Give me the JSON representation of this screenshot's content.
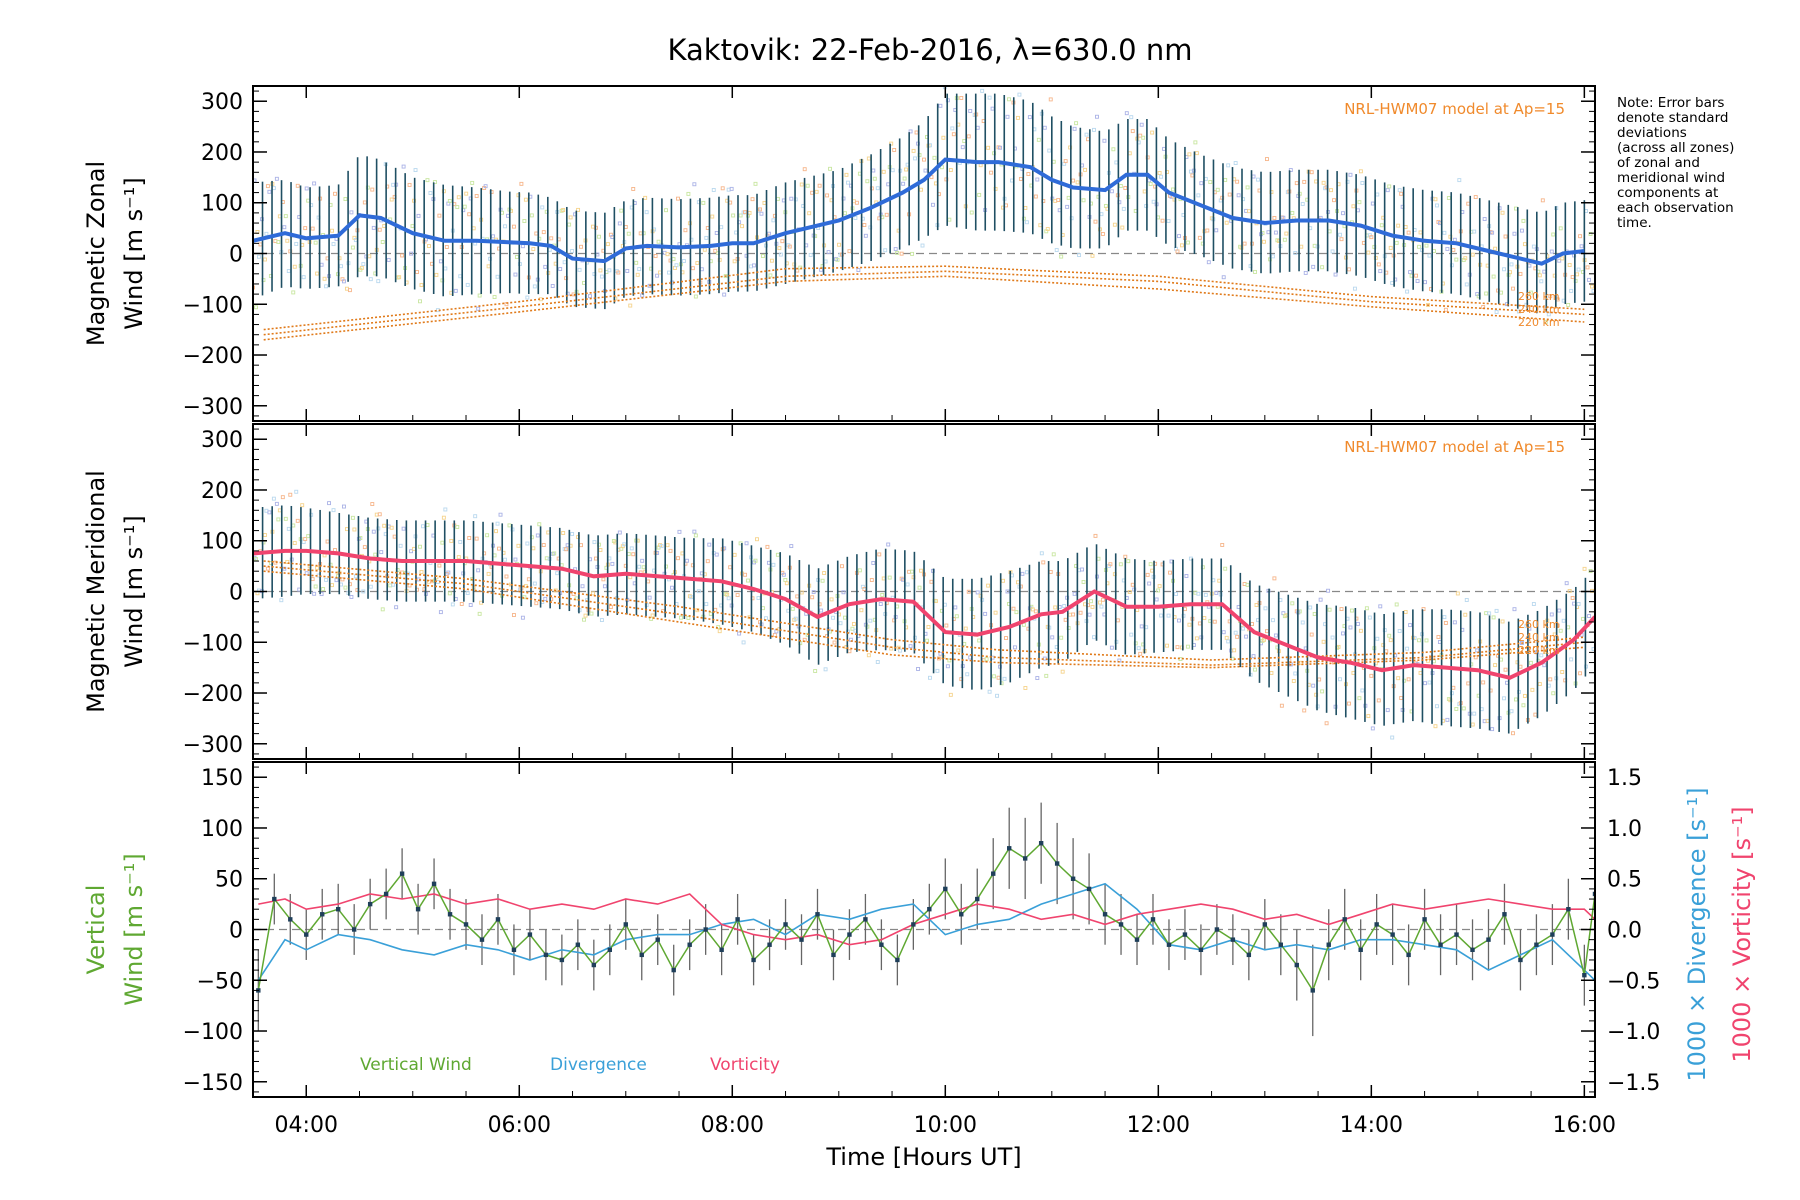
{
  "chart_data": [
    {
      "type": "line",
      "panel": "zonal",
      "title": "Kaktovik: 22-Feb-2016, λ=630.0 nm",
      "ylabel": [
        "Magnetic Zonal",
        "Wind [m s⁻¹]"
      ],
      "ylim": [
        -330,
        330
      ],
      "yticks": [
        -300,
        -200,
        -100,
        0,
        100,
        200,
        300
      ],
      "xlim_hours": [
        3.5,
        16.1
      ],
      "model_label": "NRL-HWM07 model at Ap=15",
      "model_altitudes": [
        "260 km",
        "240 km",
        "220 km"
      ],
      "note": [
        "Note: Error bars",
        "denote standard",
        "deviations",
        "(across all zones)",
        "of zonal and",
        "meridional wind",
        "components at",
        "each observation",
        "time."
      ],
      "series": [
        {
          "role": "mean",
          "color": "#2f6bd8",
          "x": [
            3.5,
            3.8,
            4.0,
            4.3,
            4.5,
            4.7,
            5.0,
            5.3,
            5.6,
            5.9,
            6.1,
            6.3,
            6.5,
            6.8,
            7.0,
            7.2,
            7.5,
            7.8,
            8.0,
            8.2,
            8.5,
            8.8,
            9.0,
            9.3,
            9.6,
            9.8,
            10.0,
            10.3,
            10.5,
            10.8,
            11.0,
            11.2,
            11.5,
            11.7,
            11.9,
            12.1,
            12.4,
            12.7,
            13.0,
            13.3,
            13.6,
            13.9,
            14.2,
            14.5,
            14.8,
            15.1,
            15.4,
            15.6,
            15.8,
            16.0
          ],
          "y": [
            25,
            40,
            30,
            35,
            75,
            70,
            40,
            25,
            25,
            22,
            20,
            15,
            -10,
            -15,
            10,
            15,
            12,
            15,
            20,
            20,
            40,
            55,
            65,
            90,
            120,
            145,
            185,
            180,
            180,
            170,
            145,
            130,
            125,
            155,
            155,
            120,
            95,
            70,
            60,
            65,
            65,
            55,
            35,
            25,
            20,
            5,
            -10,
            -20,
            0,
            5
          ],
          "error": [
            115,
            105,
            100,
            100,
            120,
            115,
            110,
            110,
            105,
            100,
            100,
            95,
            95,
            95,
            95,
            95,
            95,
            95,
            95,
            95,
            100,
            100,
            100,
            105,
            110,
            115,
            130,
            135,
            135,
            130,
            125,
            120,
            115,
            110,
            110,
            105,
            100,
            100,
            100,
            100,
            100,
            100,
            100,
            100,
            100,
            100,
            100,
            100,
            100,
            100
          ]
        },
        {
          "role": "model",
          "name": "260 km",
          "color": "#e07a1a",
          "x": [
            3.6,
            6.0,
            8.5,
            10.0,
            12.0,
            14.0,
            16.0
          ],
          "y": [
            -150,
            -95,
            -30,
            -25,
            -45,
            -85,
            -110
          ]
        },
        {
          "role": "model",
          "name": "240 km",
          "color": "#e07a1a",
          "x": [
            3.6,
            6.0,
            8.5,
            10.0,
            12.0,
            14.0,
            16.0
          ],
          "y": [
            -160,
            -105,
            -45,
            -35,
            -55,
            -95,
            -120
          ]
        },
        {
          "role": "model",
          "name": "220 km",
          "color": "#e07a1a",
          "x": [
            3.6,
            6.0,
            8.5,
            10.0,
            12.0,
            14.0,
            16.0
          ],
          "y": [
            -170,
            -115,
            -55,
            -45,
            -70,
            -105,
            -135
          ]
        }
      ]
    },
    {
      "type": "line",
      "panel": "meridional",
      "ylabel": [
        "Magnetic Meridional",
        "Wind [m s⁻¹]"
      ],
      "ylim": [
        -330,
        330
      ],
      "yticks": [
        -300,
        -200,
        -100,
        0,
        100,
        200,
        300
      ],
      "xlim_hours": [
        3.5,
        16.1
      ],
      "model_label": "NRL-HWM07 model at Ap=15",
      "model_altitudes": [
        "260 km",
        "240 km",
        "220 km"
      ],
      "series": [
        {
          "role": "mean",
          "color": "#f0446e",
          "x": [
            3.5,
            3.8,
            4.0,
            4.3,
            4.6,
            4.9,
            5.2,
            5.5,
            5.8,
            6.1,
            6.4,
            6.7,
            7.0,
            7.3,
            7.6,
            7.9,
            8.2,
            8.5,
            8.8,
            9.1,
            9.4,
            9.7,
            10.0,
            10.3,
            10.6,
            10.9,
            11.1,
            11.4,
            11.7,
            12.0,
            12.3,
            12.6,
            12.9,
            13.2,
            13.5,
            13.8,
            14.1,
            14.4,
            14.7,
            15.0,
            15.3,
            15.6,
            15.9,
            16.1
          ],
          "y": [
            75,
            80,
            80,
            75,
            65,
            60,
            60,
            60,
            55,
            50,
            45,
            30,
            35,
            30,
            25,
            20,
            5,
            -15,
            -50,
            -25,
            -15,
            -20,
            -80,
            -85,
            -70,
            -45,
            -40,
            0,
            -30,
            -30,
            -25,
            -25,
            -80,
            -105,
            -130,
            -140,
            -155,
            -145,
            -150,
            -155,
            -170,
            -140,
            -95,
            -50
          ],
          "error": [
            90,
            90,
            85,
            80,
            80,
            80,
            80,
            80,
            80,
            80,
            80,
            80,
            80,
            80,
            80,
            85,
            85,
            90,
            95,
            95,
            100,
            100,
            105,
            110,
            110,
            105,
            100,
            95,
            95,
            90,
            90,
            90,
            95,
            100,
            105,
            110,
            110,
            110,
            115,
            115,
            110,
            105,
            100,
            95
          ]
        },
        {
          "role": "model",
          "name": "260 km",
          "color": "#e07a1a",
          "x": [
            3.6,
            5.5,
            7.5,
            9.5,
            10.5,
            12.5,
            14.5,
            16.0
          ],
          "y": [
            60,
            25,
            -30,
            -95,
            -115,
            -135,
            -120,
            -90
          ]
        },
        {
          "role": "model",
          "name": "240 km",
          "color": "#e07a1a",
          "x": [
            3.6,
            5.5,
            7.5,
            9.5,
            10.5,
            12.5,
            14.5,
            16.0
          ],
          "y": [
            50,
            15,
            -45,
            -110,
            -130,
            -145,
            -130,
            -100
          ]
        },
        {
          "role": "model",
          "name": "220 km",
          "color": "#e07a1a",
          "x": [
            3.6,
            5.5,
            7.5,
            9.5,
            10.5,
            12.5,
            14.5,
            16.0
          ],
          "y": [
            40,
            5,
            -60,
            -125,
            -140,
            -150,
            -135,
            -110
          ]
        }
      ]
    },
    {
      "type": "line",
      "panel": "vertical",
      "ylabel": [
        "Vertical",
        "Wind [m s⁻¹]"
      ],
      "ylabel_right_div": "1000 × Divergence [s⁻¹]",
      "ylabel_right_vort": "1000 × Vorticity [s⁻¹]",
      "ylim": [
        -165,
        165
      ],
      "yticks": [
        -150,
        -100,
        -50,
        0,
        50,
        100,
        150
      ],
      "ylim_right": [
        -1.65,
        1.65
      ],
      "yticks_right": [
        -1.5,
        -1.0,
        -0.5,
        0.0,
        0.5,
        1.0,
        1.5
      ],
      "xlim_hours": [
        3.5,
        16.1
      ],
      "xlabel": "Time [Hours UT]",
      "xticks": [
        4,
        6,
        8,
        10,
        12,
        14,
        16
      ],
      "xtick_labels": [
        "04:00",
        "06:00",
        "08:00",
        "10:00",
        "12:00",
        "14:00",
        "16:00"
      ],
      "legend": [
        {
          "name": "Vertical Wind",
          "color": "#5fa832"
        },
        {
          "name": "Divergence",
          "color": "#3aa0d8"
        },
        {
          "name": "Vorticity",
          "color": "#f0446e"
        }
      ],
      "series": [
        {
          "name": "Vertical Wind",
          "color": "#5fa832",
          "x": [
            3.55,
            3.7,
            3.85,
            4.0,
            4.15,
            4.3,
            4.45,
            4.6,
            4.75,
            4.9,
            5.05,
            5.2,
            5.35,
            5.5,
            5.65,
            5.8,
            5.95,
            6.1,
            6.25,
            6.4,
            6.55,
            6.7,
            6.85,
            7.0,
            7.15,
            7.3,
            7.45,
            7.6,
            7.75,
            7.9,
            8.05,
            8.2,
            8.35,
            8.5,
            8.65,
            8.8,
            8.95,
            9.1,
            9.25,
            9.4,
            9.55,
            9.7,
            9.85,
            10.0,
            10.15,
            10.3,
            10.45,
            10.6,
            10.75,
            10.9,
            11.05,
            11.2,
            11.35,
            11.5,
            11.65,
            11.8,
            11.95,
            12.1,
            12.25,
            12.4,
            12.55,
            12.7,
            12.85,
            13.0,
            13.15,
            13.3,
            13.45,
            13.6,
            13.75,
            13.9,
            14.05,
            14.2,
            14.35,
            14.5,
            14.65,
            14.8,
            14.95,
            15.1,
            15.25,
            15.4,
            15.55,
            15.7,
            15.85,
            16.0,
            16.1
          ],
          "y": [
            -60,
            30,
            10,
            -5,
            15,
            20,
            0,
            25,
            35,
            55,
            20,
            45,
            15,
            5,
            -10,
            10,
            -20,
            -5,
            -25,
            -30,
            -15,
            -35,
            -20,
            5,
            -25,
            -10,
            -40,
            -15,
            0,
            -20,
            10,
            -30,
            -15,
            5,
            -10,
            15,
            -25,
            -5,
            10,
            -15,
            -30,
            5,
            20,
            40,
            15,
            30,
            55,
            80,
            70,
            85,
            65,
            50,
            40,
            15,
            5,
            -10,
            10,
            -15,
            -5,
            -20,
            0,
            -10,
            -25,
            5,
            -15,
            -35,
            -60,
            -15,
            10,
            -20,
            5,
            -5,
            -25,
            10,
            -15,
            -5,
            -20,
            -10,
            15,
            -30,
            -15,
            -5,
            20,
            -45,
            35
          ],
          "error": [
            40,
            25,
            25,
            25,
            25,
            25,
            25,
            25,
            25,
            25,
            25,
            25,
            25,
            25,
            25,
            25,
            25,
            25,
            25,
            25,
            25,
            25,
            25,
            25,
            25,
            25,
            25,
            25,
            25,
            25,
            25,
            25,
            25,
            25,
            25,
            25,
            25,
            25,
            25,
            25,
            25,
            25,
            25,
            30,
            30,
            30,
            35,
            40,
            40,
            40,
            40,
            40,
            35,
            30,
            30,
            25,
            25,
            25,
            25,
            25,
            25,
            25,
            25,
            25,
            30,
            35,
            45,
            35,
            30,
            30,
            30,
            30,
            30,
            30,
            30,
            30,
            30,
            30,
            30,
            30,
            30,
            30,
            30,
            30,
            30
          ]
        },
        {
          "name": "Divergence",
          "color": "#3aa0d8",
          "axis": "right",
          "x": [
            3.55,
            3.8,
            4.0,
            4.3,
            4.6,
            4.9,
            5.2,
            5.5,
            5.8,
            6.1,
            6.4,
            6.7,
            7.0,
            7.3,
            7.6,
            7.9,
            8.2,
            8.5,
            8.8,
            9.1,
            9.4,
            9.7,
            10.0,
            10.3,
            10.6,
            10.9,
            11.2,
            11.5,
            11.8,
            12.1,
            12.4,
            12.7,
            13.0,
            13.3,
            13.6,
            13.9,
            14.2,
            14.5,
            14.8,
            15.1,
            15.4,
            15.7,
            16.0,
            16.1
          ],
          "y": [
            -0.5,
            -0.1,
            -0.2,
            -0.05,
            -0.1,
            -0.2,
            -0.25,
            -0.15,
            -0.2,
            -0.3,
            -0.2,
            -0.25,
            -0.1,
            -0.05,
            -0.05,
            0.05,
            0.1,
            -0.05,
            0.15,
            0.1,
            0.2,
            0.25,
            -0.05,
            0.05,
            0.1,
            0.25,
            0.35,
            0.45,
            0.2,
            -0.15,
            -0.2,
            -0.1,
            -0.2,
            -0.15,
            -0.2,
            -0.1,
            -0.1,
            -0.15,
            -0.2,
            -0.4,
            -0.25,
            -0.1,
            -0.4,
            -0.5
          ]
        },
        {
          "name": "Vorticity",
          "color": "#f0446e",
          "axis": "right",
          "x": [
            3.55,
            3.8,
            4.0,
            4.3,
            4.6,
            4.9,
            5.2,
            5.5,
            5.8,
            6.1,
            6.4,
            6.7,
            7.0,
            7.3,
            7.6,
            7.9,
            8.2,
            8.5,
            8.8,
            9.1,
            9.4,
            9.7,
            10.0,
            10.3,
            10.6,
            10.9,
            11.2,
            11.5,
            11.8,
            12.1,
            12.4,
            12.7,
            13.0,
            13.3,
            13.6,
            13.9,
            14.2,
            14.5,
            14.8,
            15.1,
            15.4,
            15.7,
            16.0,
            16.1
          ],
          "y": [
            0.25,
            0.3,
            0.2,
            0.25,
            0.35,
            0.3,
            0.35,
            0.25,
            0.3,
            0.2,
            0.25,
            0.2,
            0.3,
            0.25,
            0.35,
            0.05,
            -0.05,
            -0.1,
            -0.05,
            -0.15,
            -0.1,
            0.05,
            0.15,
            0.25,
            0.2,
            0.1,
            0.15,
            0.05,
            0.15,
            0.2,
            0.25,
            0.2,
            0.1,
            0.15,
            0.05,
            0.15,
            0.25,
            0.2,
            0.25,
            0.3,
            0.25,
            0.2,
            0.2,
            0.1
          ]
        }
      ]
    }
  ]
}
